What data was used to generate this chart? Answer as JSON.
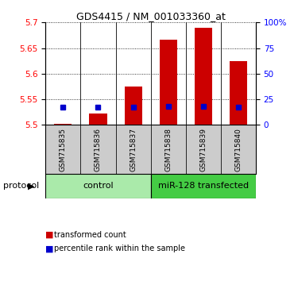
{
  "title": "GDS4415 / NM_001033360_at",
  "samples": [
    "GSM715835",
    "GSM715836",
    "GSM715837",
    "GSM715838",
    "GSM715839",
    "GSM715840"
  ],
  "red_values": [
    5.502,
    5.523,
    5.575,
    5.667,
    5.69,
    5.625
  ],
  "blue_values": [
    5.535,
    5.535,
    5.535,
    5.537,
    5.537,
    5.535
  ],
  "yticks_left": [
    5.5,
    5.55,
    5.6,
    5.65,
    5.7
  ],
  "yticks_right": [
    0,
    25,
    50,
    75,
    100
  ],
  "ymin": 5.5,
  "ymax": 5.7,
  "bar_color": "#cc0000",
  "marker_color": "#0000cc",
  "control_color": "#aaeaaa",
  "transfected_color": "#44cc44",
  "sample_box_color": "#cccccc",
  "bar_width": 0.5,
  "baseline": 5.5,
  "title_fontsize": 9,
  "tick_fontsize": 7.5,
  "label_fontsize": 7,
  "sample_fontsize": 6.5,
  "proto_fontsize": 8
}
